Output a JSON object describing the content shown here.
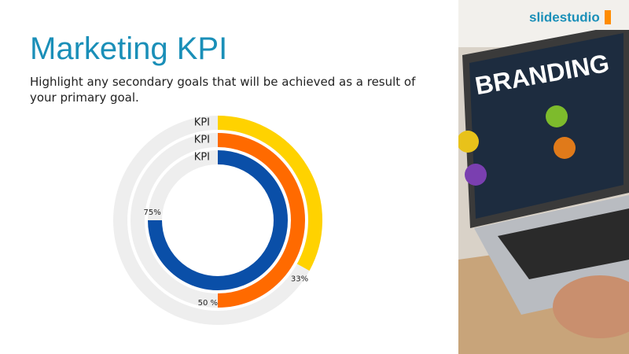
{
  "chart_data": {
    "type": "radial-bar",
    "title": "Marketing KPI",
    "subtitle": "Highlight any secondary goals that will be achieved as a result of your primary goal.",
    "categories": [
      "KPI",
      "KPI",
      "KPI"
    ],
    "values": [
      33,
      50,
      75
    ],
    "value_labels": [
      "33%",
      "50 %",
      "75%"
    ],
    "colors": [
      "#ffd200",
      "#ff6a00",
      "#0a4fa8"
    ],
    "track_color": "#eeeeee",
    "max": 100
  },
  "logo": "slidestudio",
  "photo_text": "BRANDING"
}
